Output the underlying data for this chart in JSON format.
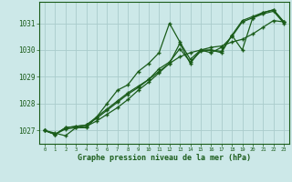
{
  "title": "Graphe pression niveau de la mer (hPa)",
  "bg_color": "#cce8e8",
  "grid_color": "#aacccc",
  "line_color": "#1a5c1a",
  "marker_color": "#1a5c1a",
  "xlim": [
    -0.5,
    23.5
  ],
  "ylim": [
    1026.5,
    1031.8
  ],
  "yticks": [
    1027,
    1028,
    1029,
    1030,
    1031
  ],
  "xticks": [
    0,
    1,
    2,
    3,
    4,
    5,
    6,
    7,
    8,
    9,
    10,
    11,
    12,
    13,
    14,
    15,
    16,
    17,
    18,
    19,
    20,
    21,
    22,
    23
  ],
  "series": [
    [
      1027.0,
      1026.9,
      1026.8,
      1027.1,
      1027.1,
      1027.5,
      1028.0,
      1028.5,
      1028.7,
      1029.2,
      1029.5,
      1029.9,
      1031.0,
      1030.3,
      1029.65,
      1030.0,
      1030.0,
      1029.9,
      1030.55,
      1030.0,
      1031.2,
      1031.35,
      1031.45,
      1031.0
    ],
    [
      1027.0,
      1026.85,
      1027.05,
      1027.1,
      1027.15,
      1027.35,
      1027.6,
      1027.85,
      1028.15,
      1028.5,
      1028.8,
      1029.15,
      1029.5,
      1029.75,
      1029.9,
      1030.0,
      1030.1,
      1030.15,
      1030.3,
      1030.4,
      1030.6,
      1030.85,
      1031.1,
      1031.05
    ],
    [
      1027.0,
      1026.85,
      1027.1,
      1027.15,
      1027.2,
      1027.45,
      1027.75,
      1028.05,
      1028.35,
      1028.6,
      1028.9,
      1029.3,
      1029.55,
      1030.05,
      1029.55,
      1029.95,
      1030.0,
      1029.95,
      1030.55,
      1031.1,
      1031.25,
      1031.4,
      1031.5,
      1031.05
    ],
    [
      1027.0,
      1026.85,
      1027.1,
      1027.15,
      1027.2,
      1027.5,
      1027.8,
      1028.1,
      1028.4,
      1028.65,
      1028.9,
      1029.2,
      1029.5,
      1030.25,
      1029.5,
      1030.0,
      1029.9,
      1030.1,
      1030.5,
      1031.05,
      1031.2,
      1031.4,
      1031.5,
      1031.05
    ]
  ]
}
